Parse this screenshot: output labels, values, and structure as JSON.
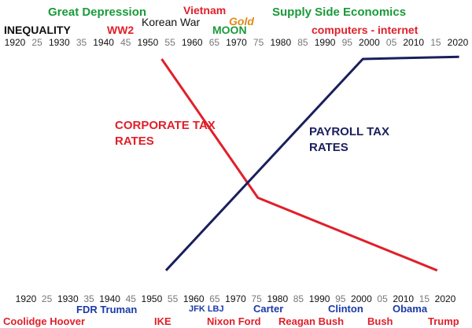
{
  "colors": {
    "red": "#e0202a",
    "navy": "#1a1f5c",
    "green": "#1a9a3a",
    "orange": "#e08a1a",
    "black": "#111111",
    "gray": "#777777",
    "blue": "#1a3aa8"
  },
  "top_events": [
    {
      "text": "Great Depression",
      "color": "green"
    },
    {
      "text": "Vietnam",
      "color": "red"
    },
    {
      "text": "Supply Side Economics",
      "color": "green"
    },
    {
      "text": "Korean War",
      "color": "black"
    },
    {
      "text": "Gold",
      "color": "orange"
    },
    {
      "text": "INEQUALITY",
      "color": "black"
    },
    {
      "text": "WW2",
      "color": "red"
    },
    {
      "text": "MOON",
      "color": "green"
    },
    {
      "text": "computers - internet",
      "color": "red"
    }
  ],
  "presidents_row1": [
    {
      "text": "FDR Truman",
      "color": "blue"
    },
    {
      "text": "JFK LBJ",
      "color": "blue"
    },
    {
      "text": "Carter",
      "color": "blue"
    },
    {
      "text": "Clinton",
      "color": "blue"
    },
    {
      "text": "Obama",
      "color": "blue"
    }
  ],
  "presidents_row2": [
    {
      "text": "Coolidge Hoover",
      "color": "red"
    },
    {
      "text": "IKE",
      "color": "red"
    },
    {
      "text": "Nixon Ford",
      "color": "red"
    },
    {
      "text": "Reagan Bush",
      "color": "red"
    },
    {
      "text": "Bush",
      "color": "red"
    },
    {
      "text": "Trump",
      "color": "red"
    }
  ],
  "chart_data": {
    "type": "line",
    "title": "",
    "xlabel": "",
    "ylabel": "",
    "xlim": [
      1920,
      2020
    ],
    "x_ticks": [
      "1920",
      "25",
      "1930",
      "35",
      "1940",
      "45",
      "1950",
      "55",
      "1960",
      "65",
      "1970",
      "75",
      "1980",
      "85",
      "1990",
      "95",
      "2000",
      "05",
      "2010",
      "15",
      "2020"
    ],
    "x_ticks_major_color": "black",
    "x_ticks_minor_color": "gray",
    "series": [
      {
        "name": "CORPORATE TAX RATES",
        "color": "red",
        "x": [
          1953,
          1975,
          2016
        ],
        "y": [
          100,
          37,
          4
        ]
      },
      {
        "name": "PAYROLL TAX RATES",
        "color": "navy",
        "x": [
          1954,
          1999,
          2021
        ],
        "y": [
          4,
          100,
          101
        ]
      }
    ]
  }
}
